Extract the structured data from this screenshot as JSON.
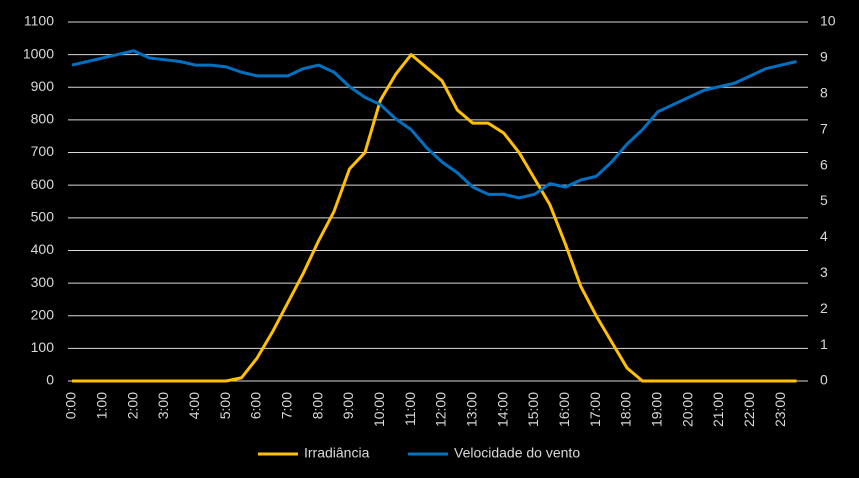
{
  "chart_data": {
    "type": "line",
    "categories": [
      "0:00",
      null,
      "1:00",
      null,
      "2:00",
      null,
      "3:00",
      null,
      "4:00",
      null,
      "5:00",
      null,
      "6:00",
      null,
      "7:00",
      null,
      "8:00",
      null,
      "9:00",
      null,
      "10:00",
      null,
      "11:00",
      null,
      "12:00",
      null,
      "13:00",
      null,
      "14:00",
      null,
      "15:00",
      null,
      "16:00",
      null,
      "17:00",
      null,
      "18:00",
      null,
      "19:00",
      null,
      "20:00",
      null,
      "21:00",
      null,
      "22:00",
      null,
      "23:00",
      null
    ],
    "series": [
      {
        "name": "Irradiância",
        "color": "#ffc000",
        "values": [
          0,
          0,
          0,
          0,
          0,
          0,
          0,
          0,
          0,
          0,
          0,
          10,
          70,
          150,
          240,
          330,
          430,
          520,
          650,
          700,
          860,
          940,
          1000,
          960,
          920,
          830,
          790,
          790,
          760,
          700,
          620,
          540,
          420,
          290,
          200,
          120,
          40,
          0,
          0,
          0,
          0,
          0,
          0,
          0,
          0,
          0,
          0,
          0
        ]
      },
      {
        "name": "Velocidade do vento",
        "color": "#0070c0",
        "axis": "y2",
        "values": [
          8.8,
          8.9,
          9.0,
          9.1,
          9.2,
          9.0,
          8.95,
          8.9,
          8.8,
          8.8,
          8.75,
          8.6,
          8.5,
          8.5,
          8.5,
          8.7,
          8.8,
          8.6,
          8.2,
          7.9,
          7.7,
          7.3,
          7.0,
          6.5,
          6.1,
          5.8,
          5.4,
          5.2,
          5.2,
          5.1,
          5.2,
          5.5,
          5.4,
          5.6,
          5.7,
          6.1,
          6.6,
          7.0,
          7.5,
          7.7,
          7.9,
          8.1,
          8.2,
          8.3,
          8.5,
          8.7,
          8.8,
          8.9
        ]
      }
    ],
    "ylim": [
      0,
      1100
    ],
    "yticks": [
      0,
      100,
      200,
      300,
      400,
      500,
      600,
      700,
      800,
      900,
      1000,
      1100
    ],
    "y2lim": [
      0,
      10
    ],
    "y2ticks": [
      0,
      1,
      2,
      3,
      4,
      5,
      6,
      7,
      8,
      9,
      10
    ],
    "grid": true,
    "legend": "bottom"
  }
}
